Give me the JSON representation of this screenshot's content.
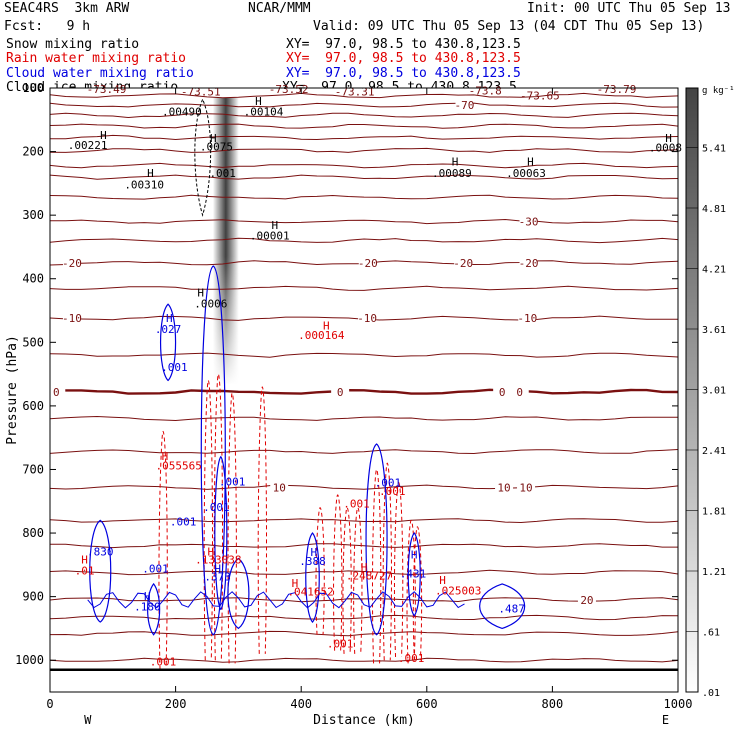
{
  "header": {
    "model": "SEAC4RS  3km ARW",
    "center": "NCAR/MMM",
    "init": "Init: 00 UTC Thu 05 Sep 13",
    "fcst": "Fcst:   9 h",
    "valid": "Valid: 09 UTC Thu 05 Sep 13 (04 CDT Thu 05 Sep 13)"
  },
  "fields": [
    {
      "name": "Snow mixing ratio",
      "xy": "XY=  97.0, 98.5 to 430.8,123.5",
      "color": "#000000"
    },
    {
      "name": "Rain water mixing ratio",
      "xy": "XY=  97.0, 98.5 to 430.8,123.5",
      "color": "#e00000"
    },
    {
      "name": "Cloud water mixing ratio",
      "xy": "XY=  97.0, 98.5 to 430.8,123.5",
      "color": "#0000e0"
    },
    {
      "name": "Cloud ice mixing ratio",
      "xy": "XY=  97.0, 98.5 to 430.8,123.5",
      "color": "#000000"
    }
  ],
  "chart_data": {
    "type": "heatmap",
    "xlabel": "Distance (km)",
    "ylabel": "Pressure (hPa)",
    "xlim": [
      0,
      1000
    ],
    "ylim": [
      1050,
      100
    ],
    "xticks": [
      0,
      200,
      400,
      600,
      800,
      1000
    ],
    "yticks": [
      1000,
      900,
      800,
      700,
      600,
      500,
      400,
      300,
      200,
      100
    ],
    "x_end_labels": {
      "left": "W",
      "right": "E"
    },
    "colorbar": {
      "unit": "g kg⁻¹",
      "ticks": [
        ".01",
        ".61",
        "1.21",
        "1.81",
        "2.41",
        "3.01",
        "3.61",
        "4.21",
        "4.81",
        "5.41"
      ],
      "values": [
        0.01,
        0.61,
        1.21,
        1.81,
        2.41,
        3.01,
        3.61,
        4.21,
        4.81,
        5.41
      ],
      "range": [
        0.01,
        6.0
      ]
    },
    "snow_shading": {
      "center_km": 280,
      "top_hpa": 115,
      "bottom_hpa": 565,
      "max_value": 3.4
    },
    "temperature_contours": [
      {
        "p": 1000
      },
      {
        "p": 958
      },
      {
        "p": 933
      },
      {
        "p": 905,
        "label": "20",
        "label_x": 855
      },
      {
        "p": 862
      },
      {
        "p": 820
      },
      {
        "p": 780
      },
      {
        "p": 728,
        "labels": [
          {
            "x": 365,
            "t": "10"
          },
          {
            "x": 723,
            "t": "10"
          },
          {
            "x": 758,
            "t": "10"
          }
        ]
      },
      {
        "p": 672
      },
      {
        "p": 620
      },
      {
        "p": 578,
        "bold": true,
        "labels": [
          {
            "x": 10,
            "t": "0"
          },
          {
            "x": 462,
            "t": "0"
          },
          {
            "x": 720,
            "t": "0"
          },
          {
            "x": 748,
            "t": "0"
          }
        ]
      },
      {
        "p": 520
      },
      {
        "p": 462,
        "labels": [
          {
            "x": 35,
            "t": "-10"
          },
          {
            "x": 505,
            "t": "-10"
          },
          {
            "x": 760,
            "t": "-10"
          }
        ]
      },
      {
        "p": 415
      },
      {
        "p": 375,
        "labels": [
          {
            "x": 35,
            "t": "-20"
          },
          {
            "x": 506,
            "t": "-20"
          },
          {
            "x": 658,
            "t": "-20"
          },
          {
            "x": 762,
            "t": "-20"
          }
        ]
      },
      {
        "p": 340
      },
      {
        "p": 310,
        "labels": [
          {
            "x": 762,
            "t": "-30"
          }
        ]
      },
      {
        "p": 272
      },
      {
        "p": 240
      },
      {
        "p": 222
      },
      {
        "p": 198
      },
      {
        "p": 178
      },
      {
        "p": 160
      },
      {
        "p": 143
      },
      {
        "p": 127,
        "labels": [
          {
            "x": 660,
            "t": "-70"
          }
        ]
      },
      {
        "p": 112
      }
    ],
    "min_labels": [
      {
        "x": 90,
        "p": 108,
        "t": "-73.49"
      },
      {
        "x": 240,
        "p": 112,
        "t": "-73.51"
      },
      {
        "x": 380,
        "p": 108,
        "t": "-73.52"
      },
      {
        "x": 485,
        "p": 112,
        "t": "-73.31"
      },
      {
        "x": 693,
        "p": 110,
        "t": "-73.8"
      },
      {
        "x": 780,
        "p": 118,
        "t": "-73.65"
      },
      {
        "x": 902,
        "p": 108,
        "t": "-73.79"
      }
    ],
    "snow_ice_labels": [
      {
        "x": 85,
        "p": 180,
        "t": "H"
      },
      {
        "x": 60,
        "p": 196,
        "t": ".00221"
      },
      {
        "x": 210,
        "p": 143,
        "t": ".00490"
      },
      {
        "x": 340,
        "p": 143,
        "t": ".00104"
      },
      {
        "x": 332,
        "p": 127,
        "t": "H"
      },
      {
        "x": 265,
        "p": 198,
        "t": ".0075"
      },
      {
        "x": 260,
        "p": 185,
        "t": "H"
      },
      {
        "x": 275,
        "p": 240,
        "t": ".001"
      },
      {
        "x": 160,
        "p": 240,
        "t": "H"
      },
      {
        "x": 150,
        "p": 258,
        "t": ".00310"
      },
      {
        "x": 358,
        "p": 322,
        "t": "H"
      },
      {
        "x": 350,
        "p": 338,
        "t": ".00001"
      },
      {
        "x": 645,
        "p": 222,
        "t": "H"
      },
      {
        "x": 640,
        "p": 240,
        "t": ".00089"
      },
      {
        "x": 765,
        "p": 222,
        "t": "H"
      },
      {
        "x": 758,
        "p": 240,
        "t": ".00063"
      },
      {
        "x": 985,
        "p": 185,
        "t": "H"
      },
      {
        "x": 980,
        "p": 200,
        "t": ".0008"
      },
      {
        "x": 240,
        "p": 428,
        "t": "H"
      },
      {
        "x": 256,
        "p": 445,
        "t": ".0006"
      }
    ],
    "rain_labels": [
      {
        "x": 440,
        "p": 480,
        "t": "H"
      },
      {
        "x": 432,
        "p": 495,
        "t": ".000164"
      },
      {
        "x": 183,
        "p": 685,
        "t": "H"
      },
      {
        "x": 205,
        "p": 700,
        "t": ".055565"
      },
      {
        "x": 488,
        "p": 760,
        "t": ".001"
      },
      {
        "x": 545,
        "p": 740,
        "t": ".001"
      },
      {
        "x": 256,
        "p": 835,
        "t": "H"
      },
      {
        "x": 268,
        "p": 848,
        "t": ".133038"
      },
      {
        "x": 55,
        "p": 848,
        "t": "H"
      },
      {
        "x": 55,
        "p": 865,
        "t": ".01"
      },
      {
        "x": 390,
        "p": 885,
        "t": "H"
      },
      {
        "x": 415,
        "p": 898,
        "t": ".041652"
      },
      {
        "x": 500,
        "p": 860,
        "t": "H"
      },
      {
        "x": 508,
        "p": 873,
        "t": ".248727"
      },
      {
        "x": 625,
        "p": 880,
        "t": "H"
      },
      {
        "x": 650,
        "p": 897,
        "t": ".025003"
      },
      {
        "x": 462,
        "p": 980,
        "t": ".001"
      },
      {
        "x": 575,
        "p": 1003,
        "t": ".001"
      },
      {
        "x": 180,
        "p": 1008,
        "t": ".001"
      }
    ],
    "cloud_labels": [
      {
        "x": 190,
        "p": 468,
        "t": "H"
      },
      {
        "x": 188,
        "p": 485,
        "t": ".027"
      },
      {
        "x": 198,
        "p": 545,
        "t": ".001"
      },
      {
        "x": 290,
        "p": 725,
        "t": ".001"
      },
      {
        "x": 265,
        "p": 765,
        "t": ".001"
      },
      {
        "x": 212,
        "p": 788,
        "t": ".001"
      },
      {
        "x": 538,
        "p": 727,
        "t": ".001"
      },
      {
        "x": 80,
        "p": 835,
        "t": ".830"
      },
      {
        "x": 168,
        "p": 862,
        "t": ".001"
      },
      {
        "x": 420,
        "p": 836,
        "t": "H"
      },
      {
        "x": 418,
        "p": 850,
        "t": ".388"
      },
      {
        "x": 580,
        "p": 840,
        "t": "H"
      },
      {
        "x": 578,
        "p": 870,
        "t": ".431"
      },
      {
        "x": 267,
        "p": 862,
        "t": "H"
      },
      {
        "x": 267,
        "p": 875,
        "t": ".373"
      },
      {
        "x": 155,
        "p": 905,
        "t": "H"
      },
      {
        "x": 155,
        "p": 922,
        "t": ".180"
      },
      {
        "x": 735,
        "p": 925,
        "t": ".487"
      }
    ]
  }
}
